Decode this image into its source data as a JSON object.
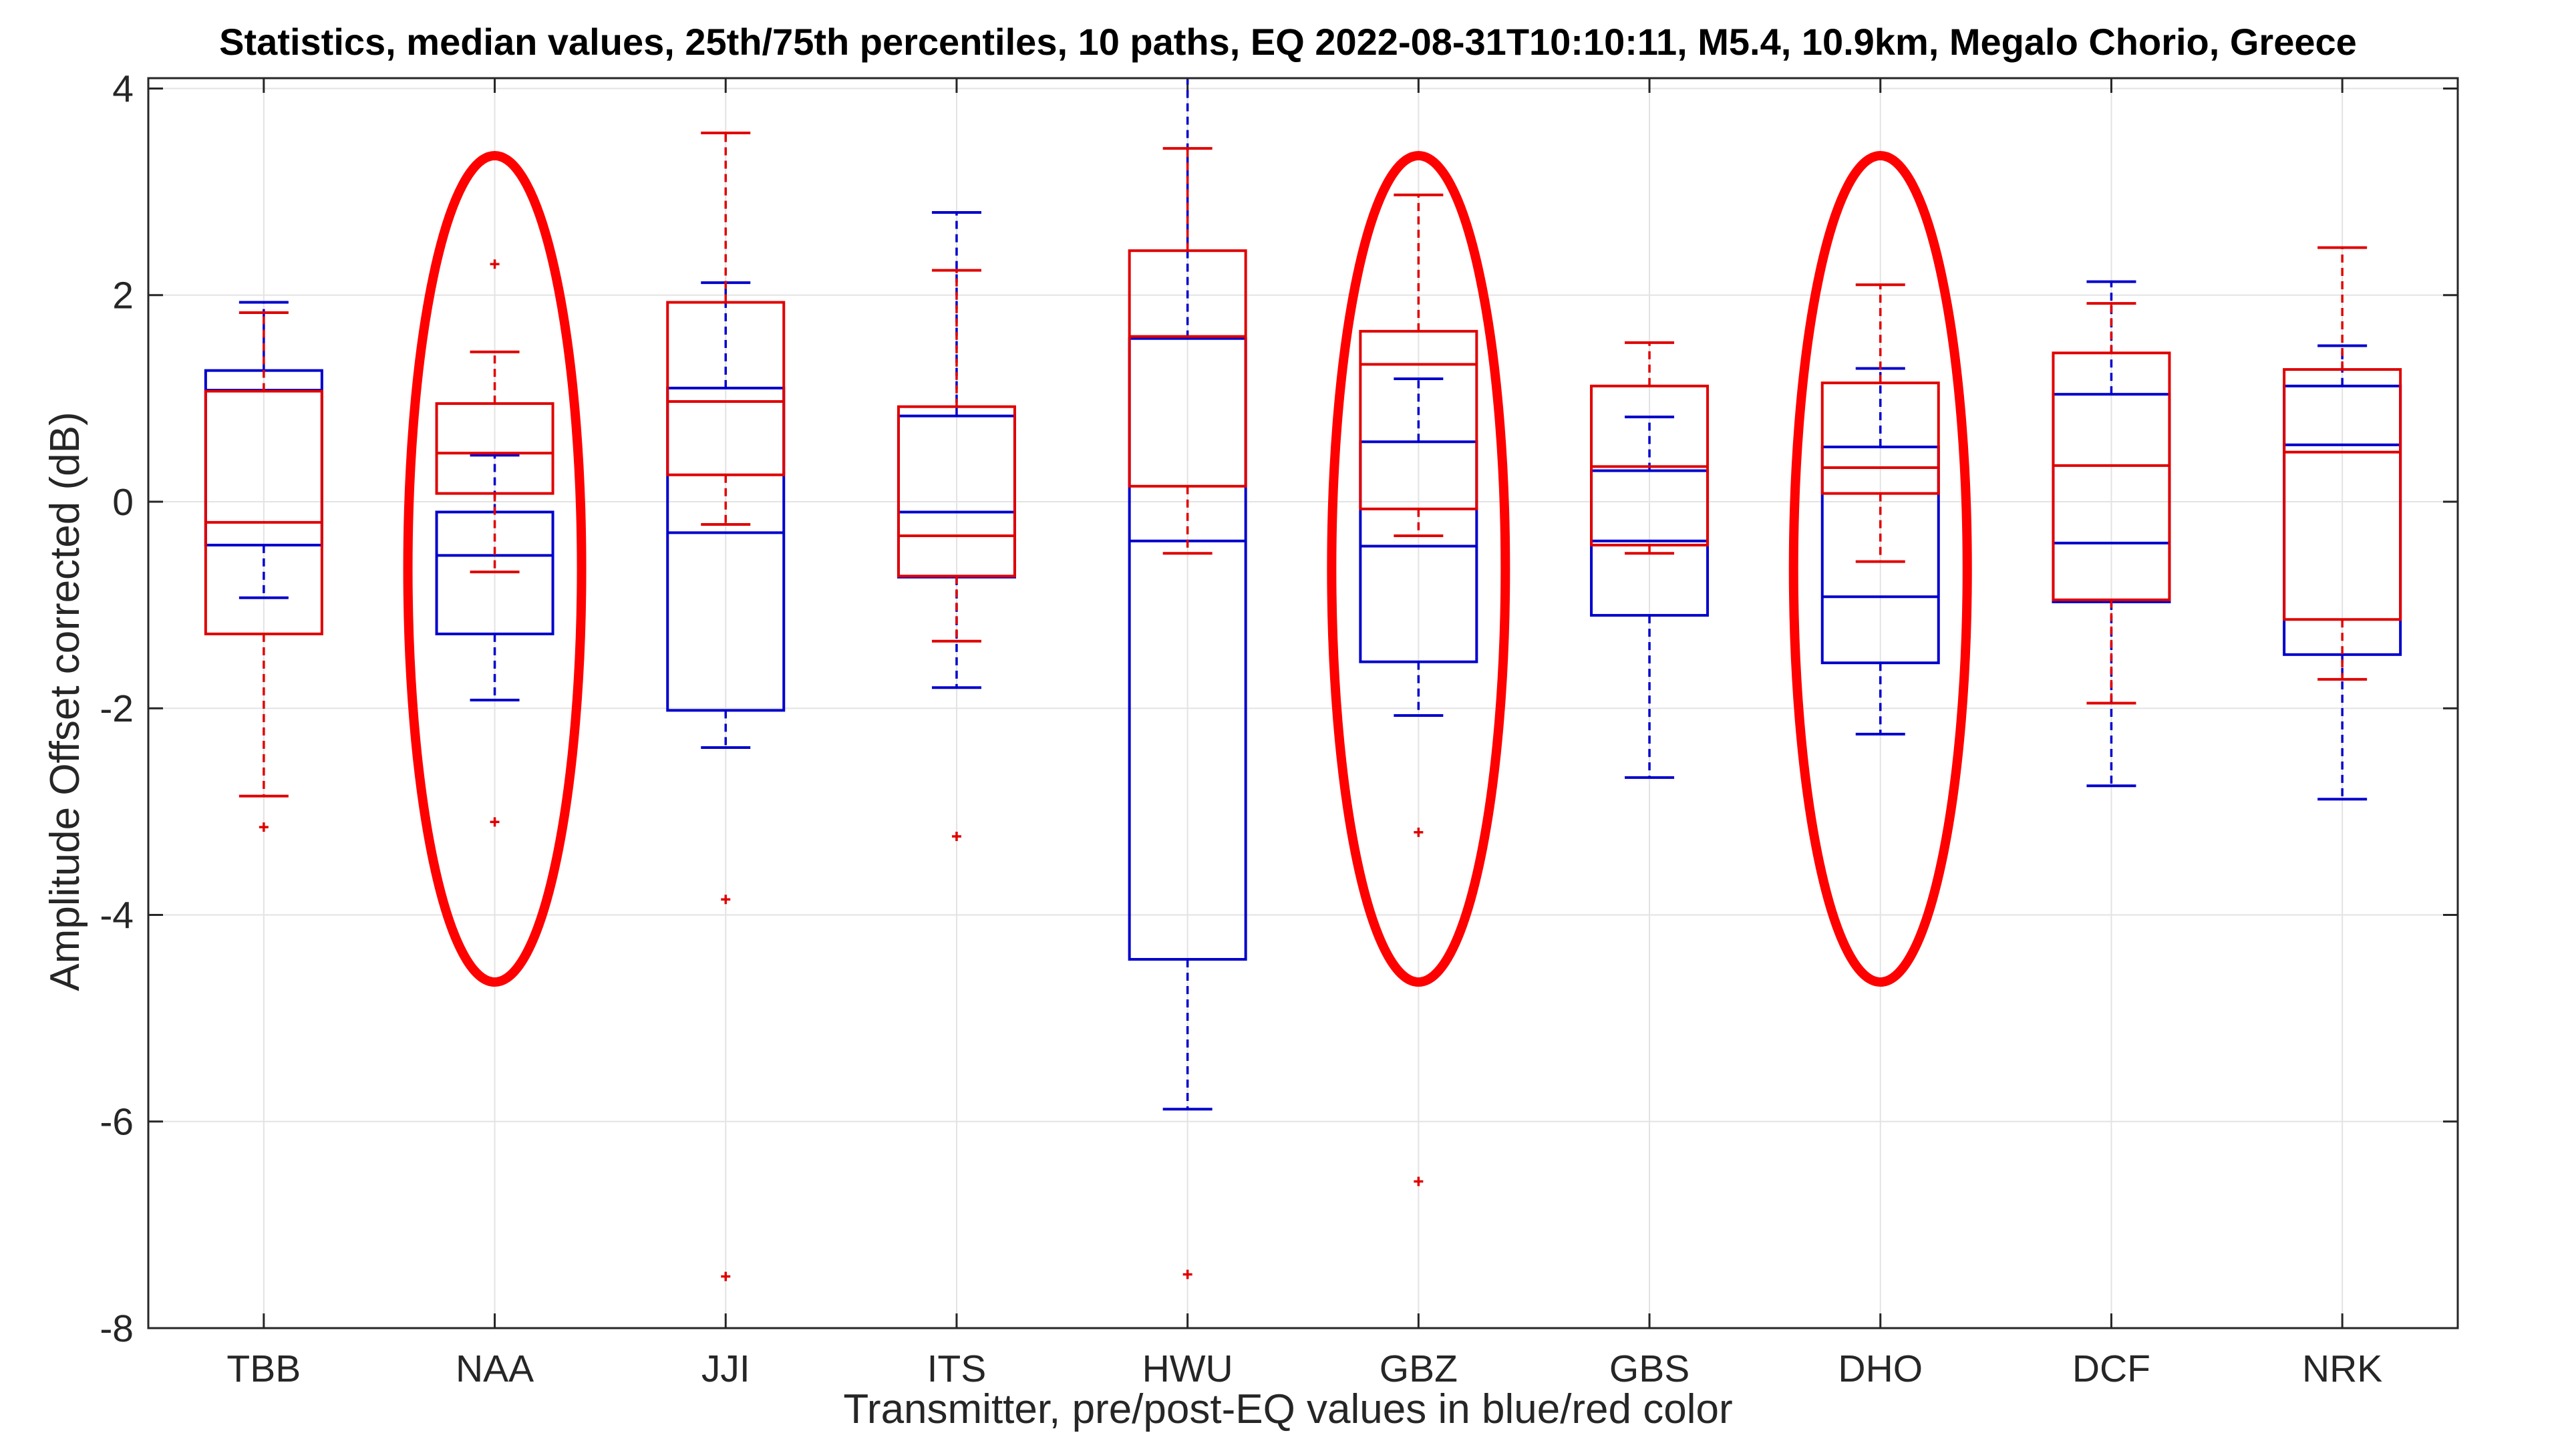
{
  "chart_data": {
    "type": "boxplot",
    "title": "Statistics, median values, 25th/75th percentiles, 10 paths, EQ 2022-08-31T10:10:11, M5.4, 10.9km, Megalo Chorio, Greece",
    "xlabel": "Transmitter, pre/post-EQ values in blue/red color",
    "ylabel": "Amplitude Offset corrected (dB)",
    "ylim": [
      -8,
      4.1
    ],
    "yticks": [
      4,
      2,
      0,
      -2,
      -4,
      -6,
      -8
    ],
    "grid": true,
    "categories": [
      "TBB",
      "NAA",
      "JJI",
      "ITS",
      "HWU",
      "GBZ",
      "GBS",
      "DHO",
      "DCF",
      "NRK"
    ],
    "colors": {
      "pre": "#0000cc",
      "post": "#e00000",
      "highlight": "#ff0000"
    },
    "series": [
      {
        "name": "pre-EQ",
        "color": "#0000cc",
        "boxes": [
          {
            "q1": -0.42,
            "median": 1.08,
            "q3": 1.27,
            "whisker_low": -0.93,
            "whisker_high": 1.93,
            "outliers": []
          },
          {
            "q1": -1.28,
            "median": -0.52,
            "q3": -0.1,
            "whisker_low": -1.92,
            "whisker_high": 0.45,
            "outliers": []
          },
          {
            "q1": -2.02,
            "median": -0.3,
            "q3": 1.1,
            "whisker_low": -2.38,
            "whisker_high": 2.12,
            "outliers": []
          },
          {
            "q1": -0.73,
            "median": -0.1,
            "q3": 0.83,
            "whisker_low": -1.8,
            "whisker_high": 2.8,
            "outliers": []
          },
          {
            "q1": -4.43,
            "median": -0.38,
            "q3": 1.58,
            "whisker_low": -5.88,
            "whisker_high": 4.1,
            "outliers": []
          },
          {
            "q1": -1.55,
            "median": -0.43,
            "q3": 0.58,
            "whisker_low": -2.07,
            "whisker_high": 1.19,
            "outliers": []
          },
          {
            "q1": -1.1,
            "median": -0.38,
            "q3": 0.3,
            "whisker_low": -2.67,
            "whisker_high": 0.82,
            "outliers": []
          },
          {
            "q1": -1.56,
            "median": -0.92,
            "q3": 0.53,
            "whisker_low": -2.25,
            "whisker_high": 1.29,
            "outliers": []
          },
          {
            "q1": -0.97,
            "median": -0.4,
            "q3": 1.04,
            "whisker_low": -2.75,
            "whisker_high": 2.13,
            "outliers": []
          },
          {
            "q1": -1.48,
            "median": 0.55,
            "q3": 1.12,
            "whisker_low": -2.88,
            "whisker_high": 1.51,
            "outliers": []
          }
        ]
      },
      {
        "name": "post-EQ",
        "color": "#e00000",
        "boxes": [
          {
            "q1": -1.28,
            "median": -0.2,
            "q3": 1.07,
            "whisker_low": -2.85,
            "whisker_high": 1.83,
            "outliers": [
              -3.15
            ]
          },
          {
            "q1": 0.08,
            "median": 0.47,
            "q3": 0.95,
            "whisker_low": -0.68,
            "whisker_high": 1.45,
            "outliers": [
              2.3,
              -3.1
            ]
          },
          {
            "q1": 0.26,
            "median": 0.97,
            "q3": 1.93,
            "whisker_low": -0.22,
            "whisker_high": 3.57,
            "outliers": [
              -3.85,
              -7.5
            ]
          },
          {
            "q1": -0.72,
            "median": -0.33,
            "q3": 0.92,
            "whisker_low": -1.35,
            "whisker_high": 2.24,
            "outliers": [
              -3.24
            ]
          },
          {
            "q1": 0.15,
            "median": 1.6,
            "q3": 2.43,
            "whisker_low": -0.5,
            "whisker_high": 3.42,
            "outliers": [
              -7.48
            ]
          },
          {
            "q1": -0.07,
            "median": 1.33,
            "q3": 1.65,
            "whisker_low": -0.33,
            "whisker_high": 2.97,
            "outliers": [
              -3.2,
              -6.58
            ]
          },
          {
            "q1": -0.42,
            "median": 0.34,
            "q3": 1.12,
            "whisker_low": -0.5,
            "whisker_high": 1.54,
            "outliers": []
          },
          {
            "q1": 0.08,
            "median": 0.33,
            "q3": 1.15,
            "whisker_low": -0.58,
            "whisker_high": 2.1,
            "outliers": []
          },
          {
            "q1": -0.95,
            "median": 0.35,
            "q3": 1.44,
            "whisker_low": -1.95,
            "whisker_high": 1.92,
            "outliers": []
          },
          {
            "q1": -1.14,
            "median": 0.48,
            "q3": 1.28,
            "whisker_low": -1.72,
            "whisker_high": 2.46,
            "outliers": []
          }
        ]
      }
    ],
    "highlighted_categories": [
      "NAA",
      "GBZ",
      "DHO"
    ]
  }
}
